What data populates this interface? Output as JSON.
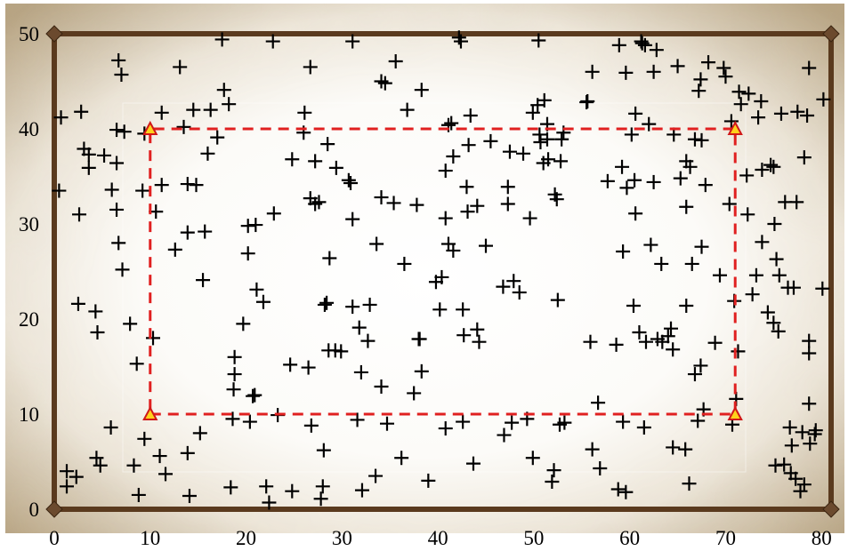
{
  "chart_data": {
    "type": "scatter",
    "title": "",
    "xlabel": "",
    "ylabel": "",
    "xlim": [
      0,
      81
    ],
    "ylim": [
      0,
      50
    ],
    "x_ticks": [
      "0",
      "10",
      "20",
      "30",
      "40",
      "50",
      "60",
      "70",
      "80"
    ],
    "y_ticks": [
      "0",
      "10",
      "20",
      "30",
      "40",
      "50"
    ],
    "grid": false,
    "legend": "none",
    "marker": "plus",
    "colors": {
      "points": "#000000",
      "frame": "#5a3a1e",
      "corner_markers": "#6b4a2e",
      "rectangle": "#e02020",
      "triangle_fill": "#ffd21c",
      "triangle_stroke": "#d01818",
      "background_center": "#ffffff",
      "background_edge": "#b8a482"
    },
    "frame_corners": [
      {
        "x": 0,
        "y": 0
      },
      {
        "x": 81,
        "y": 0
      },
      {
        "x": 81,
        "y": 50
      },
      {
        "x": 0,
        "y": 50
      }
    ],
    "rectangle": {
      "style": "dashed",
      "corners": [
        {
          "x": 10,
          "y": 10
        },
        {
          "x": 71,
          "y": 10
        },
        {
          "x": 71,
          "y": 40
        },
        {
          "x": 10,
          "y": 40
        }
      ]
    },
    "series": [
      {
        "points": [
          [
            0.5,
            33.5
          ],
          [
            0.7,
            41.2
          ],
          [
            1.3,
            4.0
          ],
          [
            1.3,
            2.4
          ],
          [
            2.3,
            3.4
          ],
          [
            2.5,
            21.6
          ],
          [
            2.6,
            31.0
          ],
          [
            2.8,
            41.8
          ],
          [
            3.1,
            37.9
          ],
          [
            3.6,
            35.9
          ],
          [
            3.6,
            37.3
          ],
          [
            4.3,
            20.8
          ],
          [
            4.5,
            18.6
          ],
          [
            4.4,
            5.4
          ],
          [
            4.8,
            4.6
          ],
          [
            5.2,
            37.2
          ],
          [
            5.9,
            8.6
          ],
          [
            6.0,
            33.6
          ],
          [
            6.5,
            31.5
          ],
          [
            6.5,
            36.4
          ],
          [
            6.5,
            39.9
          ],
          [
            6.7,
            28.0
          ],
          [
            6.7,
            47.2
          ],
          [
            7.0,
            45.7
          ],
          [
            7.1,
            25.2
          ],
          [
            7.3,
            39.7
          ],
          [
            7.9,
            19.5
          ],
          [
            8.3,
            4.6
          ],
          [
            8.6,
            15.3
          ],
          [
            8.8,
            1.5
          ],
          [
            9.2,
            33.5
          ],
          [
            9.4,
            39.5
          ],
          [
            9.4,
            7.4
          ],
          [
            10.3,
            18.0
          ],
          [
            10.6,
            31.3
          ],
          [
            11.0,
            5.6
          ],
          [
            11.2,
            34.1
          ],
          [
            11.2,
            41.7
          ],
          [
            11.6,
            3.7
          ],
          [
            12.6,
            27.3
          ],
          [
            13.1,
            46.5
          ],
          [
            13.5,
            40.2
          ],
          [
            13.9,
            34.2
          ],
          [
            13.9,
            29.1
          ],
          [
            13.9,
            5.9
          ],
          [
            14.1,
            1.4
          ],
          [
            14.5,
            42.0
          ],
          [
            14.8,
            34.1
          ],
          [
            15.2,
            8.0
          ],
          [
            15.5,
            24.1
          ],
          [
            15.7,
            29.2
          ],
          [
            16.0,
            37.4
          ],
          [
            16.3,
            42.0
          ],
          [
            17.0,
            39.1
          ],
          [
            17.5,
            49.4
          ],
          [
            17.7,
            44.1
          ],
          [
            18.2,
            42.6
          ],
          [
            18.4,
            2.3
          ],
          [
            18.6,
            9.5
          ],
          [
            18.7,
            12.6
          ],
          [
            18.8,
            16.0
          ],
          [
            18.8,
            14.2
          ],
          [
            19.7,
            19.5
          ],
          [
            20.2,
            29.8
          ],
          [
            20.2,
            26.9
          ],
          [
            20.4,
            9.2
          ],
          [
            20.7,
            11.9
          ],
          [
            20.9,
            12.0
          ],
          [
            21.0,
            29.9
          ],
          [
            21.1,
            23.1
          ],
          [
            21.8,
            21.8
          ],
          [
            22.1,
            2.4
          ],
          [
            22.4,
            0.7
          ],
          [
            22.8,
            49.2
          ],
          [
            22.9,
            31.1
          ],
          [
            23.3,
            9.9
          ],
          [
            24.6,
            15.2
          ],
          [
            24.8,
            36.8
          ],
          [
            24.8,
            1.9
          ],
          [
            26.0,
            39.6
          ],
          [
            26.1,
            41.7
          ],
          [
            26.5,
            14.9
          ],
          [
            26.7,
            46.5
          ],
          [
            26.7,
            32.7
          ],
          [
            26.8,
            8.8
          ],
          [
            27.2,
            32.1
          ],
          [
            27.2,
            36.6
          ],
          [
            27.6,
            32.3
          ],
          [
            27.8,
            1.1
          ],
          [
            28.0,
            2.4
          ],
          [
            28.1,
            6.2
          ],
          [
            28.2,
            21.5
          ],
          [
            28.4,
            21.7
          ],
          [
            28.5,
            38.4
          ],
          [
            28.6,
            16.7
          ],
          [
            28.7,
            26.4
          ],
          [
            29.3,
            16.7
          ],
          [
            29.4,
            35.9
          ],
          [
            29.9,
            16.6
          ],
          [
            30.7,
            34.6
          ],
          [
            30.9,
            34.3
          ],
          [
            31.1,
            21.3
          ],
          [
            31.1,
            30.5
          ],
          [
            31.1,
            49.2
          ],
          [
            31.6,
            9.4
          ],
          [
            31.8,
            19.1
          ],
          [
            32.0,
            14.4
          ],
          [
            32.1,
            2.0
          ],
          [
            32.7,
            17.7
          ],
          [
            32.9,
            21.5
          ],
          [
            33.5,
            3.5
          ],
          [
            33.6,
            27.9
          ],
          [
            34.1,
            12.9
          ],
          [
            34.1,
            45.0
          ],
          [
            34.1,
            32.8
          ],
          [
            34.5,
            44.8
          ],
          [
            34.7,
            9.0
          ],
          [
            35.4,
            32.2
          ],
          [
            35.6,
            47.1
          ],
          [
            36.2,
            5.4
          ],
          [
            36.5,
            25.8
          ],
          [
            36.8,
            42.0
          ],
          [
            37.5,
            12.2
          ],
          [
            37.8,
            32.0
          ],
          [
            38.0,
            17.9
          ],
          [
            38.1,
            17.9
          ],
          [
            38.3,
            14.5
          ],
          [
            38.3,
            44.1
          ],
          [
            39.0,
            3.0
          ],
          [
            39.8,
            23.9
          ],
          [
            40.2,
            21.0
          ],
          [
            40.4,
            24.4
          ],
          [
            40.8,
            35.6
          ],
          [
            40.8,
            30.6
          ],
          [
            40.8,
            8.5
          ],
          [
            41.1,
            40.4
          ],
          [
            41.1,
            27.9
          ],
          [
            41.4,
            40.6
          ],
          [
            41.6,
            27.2
          ],
          [
            41.6,
            37.1
          ],
          [
            42.2,
            49.6
          ],
          [
            42.4,
            49.2
          ],
          [
            42.6,
            21.0
          ],
          [
            42.6,
            9.2
          ],
          [
            42.7,
            18.3
          ],
          [
            43.0,
            33.9
          ],
          [
            43.1,
            31.3
          ],
          [
            43.2,
            38.3
          ],
          [
            43.4,
            41.4
          ],
          [
            43.7,
            4.8
          ],
          [
            44.1,
            18.9
          ],
          [
            44.1,
            31.9
          ],
          [
            44.3,
            17.6
          ],
          [
            45.0,
            27.7
          ],
          [
            45.5,
            38.7
          ],
          [
            46.8,
            23.4
          ],
          [
            46.9,
            7.8
          ],
          [
            47.3,
            32.1
          ],
          [
            47.3,
            33.9
          ],
          [
            47.5,
            37.6
          ],
          [
            47.7,
            9.1
          ],
          [
            47.9,
            24.0
          ],
          [
            48.5,
            22.8
          ],
          [
            48.9,
            37.4
          ],
          [
            49.3,
            9.5
          ],
          [
            49.6,
            30.6
          ],
          [
            49.9,
            41.7
          ],
          [
            49.9,
            5.4
          ],
          [
            50.4,
            42.5
          ],
          [
            50.5,
            49.3
          ],
          [
            50.6,
            39.4
          ],
          [
            50.7,
            38.6
          ],
          [
            51.0,
            36.4
          ],
          [
            51.1,
            43.0
          ],
          [
            51.4,
            38.9
          ],
          [
            51.4,
            40.5
          ],
          [
            51.5,
            36.8
          ],
          [
            51.9,
            2.9
          ],
          [
            52.1,
            4.1
          ],
          [
            52.2,
            33.1
          ],
          [
            52.4,
            32.6
          ],
          [
            52.5,
            22.0
          ],
          [
            52.7,
            8.9
          ],
          [
            52.8,
            36.6
          ],
          [
            52.9,
            38.9
          ],
          [
            53.1,
            39.6
          ],
          [
            53.2,
            9.1
          ],
          [
            55.5,
            42.8
          ],
          [
            55.6,
            42.9
          ],
          [
            55.9,
            17.6
          ],
          [
            56.1,
            46.0
          ],
          [
            56.1,
            6.3
          ],
          [
            56.7,
            11.2
          ],
          [
            56.9,
            4.3
          ],
          [
            57.7,
            34.5
          ],
          [
            58.6,
            17.3
          ],
          [
            58.8,
            2.1
          ],
          [
            58.9,
            48.8
          ],
          [
            59.2,
            36.0
          ],
          [
            59.3,
            27.1
          ],
          [
            59.3,
            9.2
          ],
          [
            59.6,
            1.8
          ],
          [
            59.6,
            45.9
          ],
          [
            59.7,
            33.8
          ],
          [
            60.2,
            39.4
          ],
          [
            60.4,
            21.4
          ],
          [
            60.5,
            34.6
          ],
          [
            60.6,
            41.6
          ],
          [
            60.6,
            31.1
          ],
          [
            61.0,
            18.6
          ],
          [
            61.2,
            49.2
          ],
          [
            61.3,
            49.0
          ],
          [
            61.5,
            8.6
          ],
          [
            61.6,
            48.8
          ],
          [
            61.7,
            17.6
          ],
          [
            62.0,
            40.5
          ],
          [
            62.2,
            27.8
          ],
          [
            62.5,
            34.4
          ],
          [
            62.5,
            46.0
          ],
          [
            62.8,
            48.3
          ],
          [
            62.9,
            17.9
          ],
          [
            63.3,
            25.8
          ],
          [
            63.4,
            17.6
          ],
          [
            64.0,
            18.2
          ],
          [
            64.3,
            19.0
          ],
          [
            64.5,
            16.8
          ],
          [
            64.5,
            6.5
          ],
          [
            64.6,
            39.4
          ],
          [
            65.0,
            46.6
          ],
          [
            65.3,
            34.8
          ],
          [
            65.8,
            6.3
          ],
          [
            65.9,
            36.6
          ],
          [
            65.9,
            21.4
          ],
          [
            65.9,
            31.8
          ],
          [
            66.2,
            2.7
          ],
          [
            66.3,
            36.0
          ],
          [
            66.5,
            25.8
          ],
          [
            66.8,
            14.2
          ],
          [
            66.8,
            38.9
          ],
          [
            67.1,
            9.3
          ],
          [
            67.2,
            44.0
          ],
          [
            67.4,
            45.2
          ],
          [
            67.4,
            15.1
          ],
          [
            67.5,
            27.6
          ],
          [
            67.5,
            38.8
          ],
          [
            67.7,
            10.5
          ],
          [
            67.9,
            34.1
          ],
          [
            68.2,
            47.0
          ],
          [
            68.9,
            17.5
          ],
          [
            69.4,
            24.6
          ],
          [
            69.8,
            46.4
          ],
          [
            70.0,
            45.5
          ],
          [
            70.4,
            32.1
          ],
          [
            70.6,
            40.8
          ],
          [
            70.7,
            8.9
          ],
          [
            70.9,
            21.9
          ],
          [
            71.1,
            11.6
          ],
          [
            71.3,
            16.6
          ],
          [
            71.4,
            43.9
          ],
          [
            71.6,
            42.6
          ],
          [
            72.2,
            35.1
          ],
          [
            72.3,
            31.0
          ],
          [
            72.4,
            43.7
          ],
          [
            72.8,
            22.6
          ],
          [
            73.2,
            24.6
          ],
          [
            73.4,
            41.2
          ],
          [
            73.7,
            42.9
          ],
          [
            73.8,
            28.1
          ],
          [
            73.8,
            35.7
          ],
          [
            74.4,
            20.7
          ],
          [
            74.7,
            36.2
          ],
          [
            75.0,
            19.6
          ],
          [
            75.0,
            36.0
          ],
          [
            75.1,
            30.0
          ],
          [
            75.2,
            4.6
          ],
          [
            75.3,
            26.3
          ],
          [
            75.5,
            18.7
          ],
          [
            75.6,
            24.6
          ],
          [
            75.8,
            41.6
          ],
          [
            76.1,
            4.7
          ],
          [
            76.2,
            32.3
          ],
          [
            76.5,
            23.3
          ],
          [
            76.7,
            8.6
          ],
          [
            76.8,
            3.8
          ],
          [
            76.9,
            6.7
          ],
          [
            77.1,
            23.3
          ],
          [
            77.3,
            3.2
          ],
          [
            77.4,
            32.3
          ],
          [
            77.5,
            41.8
          ],
          [
            77.8,
            1.9
          ],
          [
            78.0,
            8.1
          ],
          [
            78.2,
            37.0
          ],
          [
            78.2,
            2.6
          ],
          [
            78.5,
            41.4
          ],
          [
            78.7,
            17.7
          ],
          [
            78.7,
            16.4
          ],
          [
            78.7,
            46.4
          ],
          [
            78.7,
            11.1
          ],
          [
            78.8,
            6.9
          ],
          [
            79.3,
            7.9
          ],
          [
            79.4,
            8.3
          ],
          [
            80.1,
            23.2
          ],
          [
            80.2,
            43.1
          ]
        ]
      }
    ]
  }
}
